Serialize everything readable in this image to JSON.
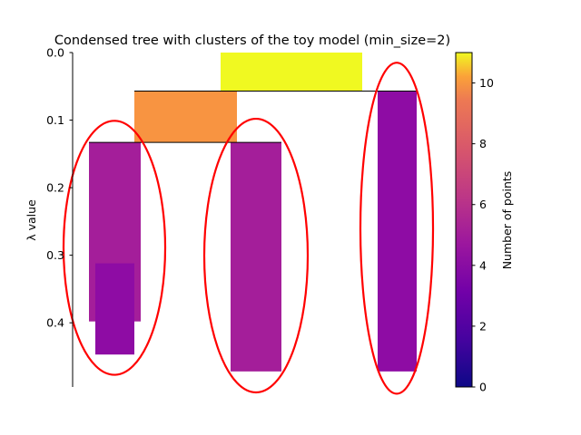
{
  "chart_data": {
    "type": "condensed-tree",
    "title": "Condensed tree with clusters of the toy model (min_size=2)",
    "ylabel": "λ value",
    "ylim": [
      0,
      0.495
    ],
    "y_inverted": true,
    "yticks": [
      0.0,
      0.1,
      0.2,
      0.3,
      0.4
    ],
    "yticklabels": [
      "0.0",
      "0.1",
      "0.2",
      "0.3",
      "0.4"
    ],
    "colormap": "plasma",
    "colorbar": {
      "label": "Number of points",
      "range": [
        0,
        11
      ],
      "ticks": [
        0,
        2,
        4,
        6,
        8,
        10
      ],
      "ticklabels": [
        "0",
        "2",
        "4",
        "6",
        "8",
        "10"
      ]
    },
    "branches": [
      {
        "id": "root",
        "points": 11,
        "lambda_start": 0.0,
        "lambda_end": 0.057,
        "color": "#f0f921"
      },
      {
        "id": "left-parent",
        "points": 7,
        "lambda_start": 0.057,
        "lambda_end": 0.133,
        "color": "#f89441"
      },
      {
        "id": "right-leaf",
        "points": 3,
        "lambda_start": 0.057,
        "lambda_end": 0.472,
        "color": "#8e0ca4"
      },
      {
        "id": "left-leaf",
        "points": 4,
        "lambda_start": 0.133,
        "lambda_end": 0.398,
        "color": "#a41e9a"
      },
      {
        "id": "left-leaf-tail",
        "points": 3,
        "lambda_start": 0.312,
        "lambda_end": 0.447,
        "color": "#8e0ca4"
      },
      {
        "id": "middle-leaf",
        "points": 4,
        "lambda_start": 0.133,
        "lambda_end": 0.472,
        "color": "#a41e9a"
      }
    ],
    "splits": [
      {
        "lambda": 0.057
      },
      {
        "lambda": 0.133
      }
    ],
    "selected_clusters": [
      "left-leaf",
      "middle-leaf",
      "right-leaf"
    ],
    "selection_color": "#ff0000"
  }
}
